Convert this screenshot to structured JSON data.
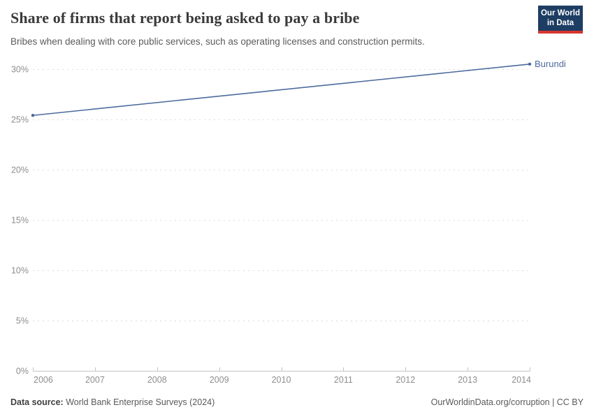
{
  "header": {
    "title": "Share of firms that report being asked to pay a bribe",
    "subtitle": "Bribes when dealing with core public services, such as operating licenses and construction permits."
  },
  "logo": {
    "line1": "Our World",
    "line2": "in Data",
    "background_color": "#1d3d63",
    "accent_color": "#d8352e"
  },
  "chart_data": {
    "type": "line",
    "title": "Share of firms that report being asked to pay a bribe",
    "subtitle": "Bribes when dealing with core public services, such as operating licenses and construction permits.",
    "x": [
      2006,
      2014
    ],
    "series": [
      {
        "name": "Burundi",
        "values": [
          25.4,
          30.5
        ],
        "color": "#4c6a9c"
      }
    ],
    "xticks": [
      2006,
      2007,
      2008,
      2009,
      2010,
      2011,
      2012,
      2013,
      2014
    ],
    "yticks": [
      0,
      5,
      10,
      15,
      20,
      25,
      30
    ],
    "ytick_suffix": "%",
    "xlim": [
      2006,
      2014
    ],
    "ylim": [
      0,
      30
    ],
    "xlabel": "",
    "ylabel": "",
    "grid": "horizontal-dashed",
    "grid_color": "#dcdcdc",
    "axis_color": "#c4c4c4",
    "tick_label_color": "#8e8e8e",
    "legend": "entity label at end of line"
  },
  "footer": {
    "source_label": "Data source:",
    "source_value": "World Bank Enterprise Surveys (2024)",
    "credit": "OurWorldinData.org/corruption | CC BY"
  }
}
